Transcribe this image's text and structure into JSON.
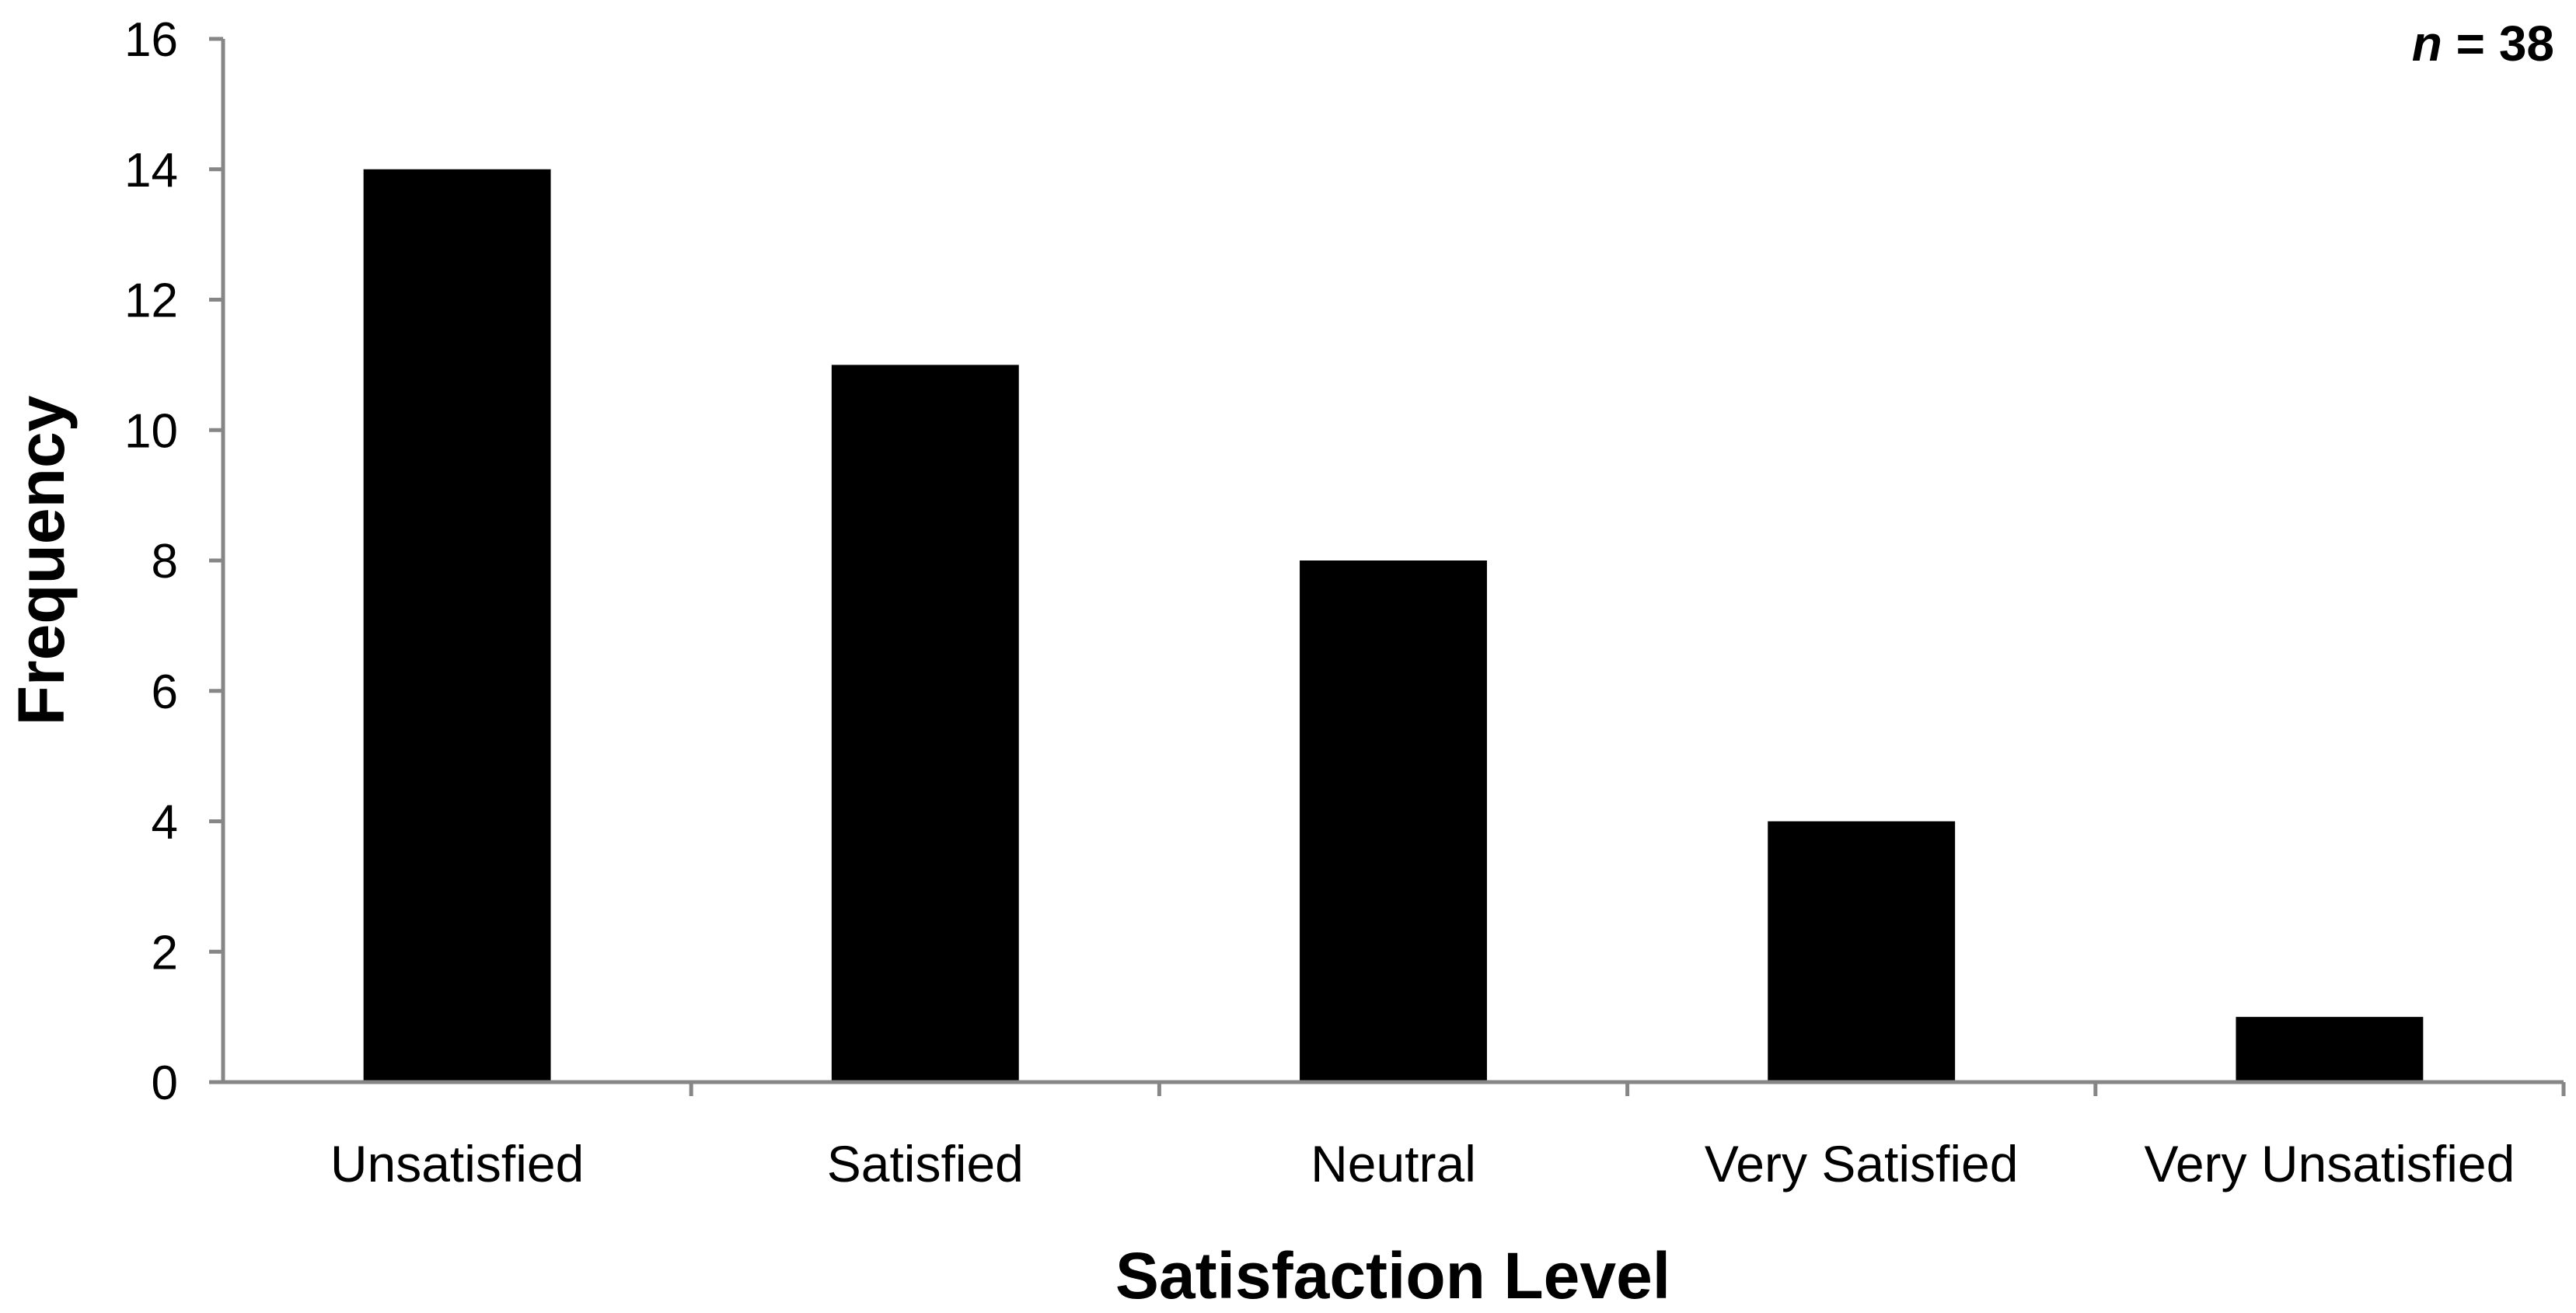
{
  "chart_data": {
    "type": "bar",
    "title": "",
    "xlabel": "Satisfaction Level",
    "ylabel": "Frequency",
    "categories": [
      "Unsatisfied",
      "Satisfied",
      "Neutral",
      "Very Satisfied",
      "Very Unsatisfied"
    ],
    "values": [
      14,
      11,
      8,
      4,
      1
    ],
    "ylim": [
      0,
      16
    ],
    "yticks": [
      "0",
      "2",
      "4",
      "6",
      "8",
      "10",
      "12",
      "14",
      "16"
    ],
    "grid": false,
    "legend": "none",
    "annotation": {
      "italic": "n",
      "rest": " = 38"
    },
    "colors": {
      "bar": "#000000",
      "axis": "#868686"
    }
  }
}
